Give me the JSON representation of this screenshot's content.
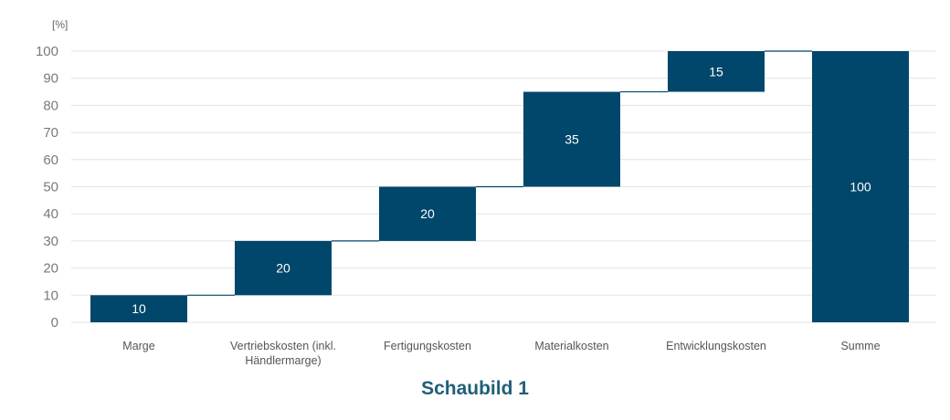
{
  "chart_data": {
    "type": "bar",
    "subtype": "waterfall",
    "y_unit": "[%]",
    "ylim": [
      0,
      100
    ],
    "yticks": [
      0,
      10,
      20,
      30,
      40,
      50,
      60,
      70,
      80,
      90,
      100
    ],
    "grid": true,
    "bar_color": "#00476b",
    "categories": [
      {
        "label_lines": [
          "Marge"
        ],
        "start": 0,
        "value": 10
      },
      {
        "label_lines": [
          "Vertriebskosten (inkl.",
          "Händlermarge)"
        ],
        "start": 10,
        "value": 20
      },
      {
        "label_lines": [
          "Fertigungskosten"
        ],
        "start": 30,
        "value": 20
      },
      {
        "label_lines": [
          "Materialkosten"
        ],
        "start": 50,
        "value": 35
      },
      {
        "label_lines": [
          "Entwicklungskosten"
        ],
        "start": 85,
        "value": 15
      },
      {
        "label_lines": [
          "Summe"
        ],
        "start": 0,
        "value": 100
      }
    ]
  },
  "caption": "Schaubild 1"
}
